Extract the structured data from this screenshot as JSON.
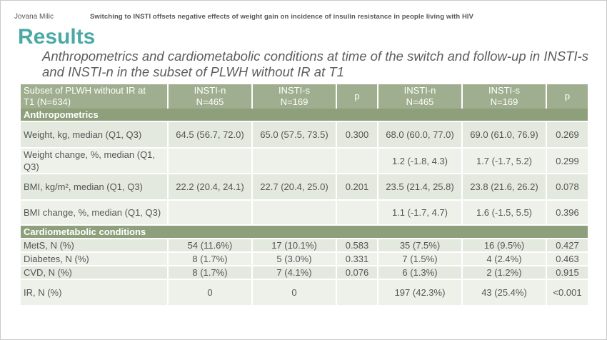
{
  "header": {
    "author": "Jovana Milic",
    "title": "Switching to INSTI offsets negative effects of weight gain on incidence of insulin resistance in people living with HIV"
  },
  "heading": "Results",
  "subtitle": "Anthropometrics and cardiometabolic conditions at time of the switch and follow-up in INSTI-s and INSTI-n in the subset of PLWH without IR at T1",
  "table": {
    "columns": [
      "Subset of PLWH without IR at T1 (N=634)",
      "INSTI-n N=465",
      "INSTI-s N=169",
      "p",
      "INSTI-n N=465",
      "INSTI-s N=169",
      "p"
    ],
    "col_lines": [
      [
        "Subset of PLWH without IR at",
        "T1 (N=634)"
      ],
      [
        "INSTI-n",
        "N=465"
      ],
      [
        "INSTI-s",
        "N=169"
      ],
      [
        "p",
        ""
      ],
      [
        "INSTI-n",
        "N=465"
      ],
      [
        "INSTI-s",
        "N=169"
      ],
      [
        "p",
        ""
      ]
    ],
    "sections": [
      {
        "title": "Anthropometrics",
        "rows": [
          [
            "Weight, kg, median (Q1, Q3)",
            "64.5 (56.7, 72.0)",
            "65.0 (57.5, 73.5)",
            "0.300",
            "68.0 (60.0, 77.0)",
            "69.0 (61.0, 76.9)",
            "0.269"
          ],
          [
            "Weight change, %, median (Q1, Q3)",
            "",
            "",
            "",
            "1.2 (-1.8, 4.3)",
            "1.7 (-1.7, 5.2)",
            "0.299"
          ],
          [
            "BMI, kg/m², median (Q1, Q3)",
            "22.2 (20.4, 24.1)",
            "22.7 (20.4, 25.0)",
            "0.201",
            "23.5 (21.4, 25.8)",
            "23.8 (21.6, 26.2)",
            "0.078"
          ],
          [
            "BMI change, %, median (Q1, Q3)",
            "",
            "",
            "",
            "1.1 (-1.7, 4.7)",
            "1.6 (-1.5, 5.5)",
            "0.396"
          ]
        ]
      },
      {
        "title": "Cardiometabolic conditions",
        "rows": [
          [
            "MetS, N (%)",
            "54 (11.6%)",
            "17 (10.1%)",
            "0.583",
            "35 (7.5%)",
            "16 (9.5%)",
            "0.427"
          ],
          [
            "Diabetes, N (%)",
            "8 (1.7%)",
            "5 (3.0%)",
            "0.331",
            "7 (1.5%)",
            "4 (2.4%)",
            "0.463"
          ],
          [
            "CVD, N (%)",
            "8 (1.7%)",
            "7 (4.1%)",
            "0.076",
            "6 (1.3%)",
            "2 (1.2%)",
            "0.915"
          ],
          [
            "IR, N (%)",
            "0",
            "0",
            "",
            "197 (42.3%)",
            "43 (25.4%)",
            "<0.001"
          ]
        ]
      }
    ]
  },
  "colors": {
    "accent": "#4aa9a4",
    "header_bg": "#9fae8f",
    "section_bg": "#8e9f7c",
    "row_light": "#e4e9df",
    "row_pale": "#eef1ea"
  }
}
